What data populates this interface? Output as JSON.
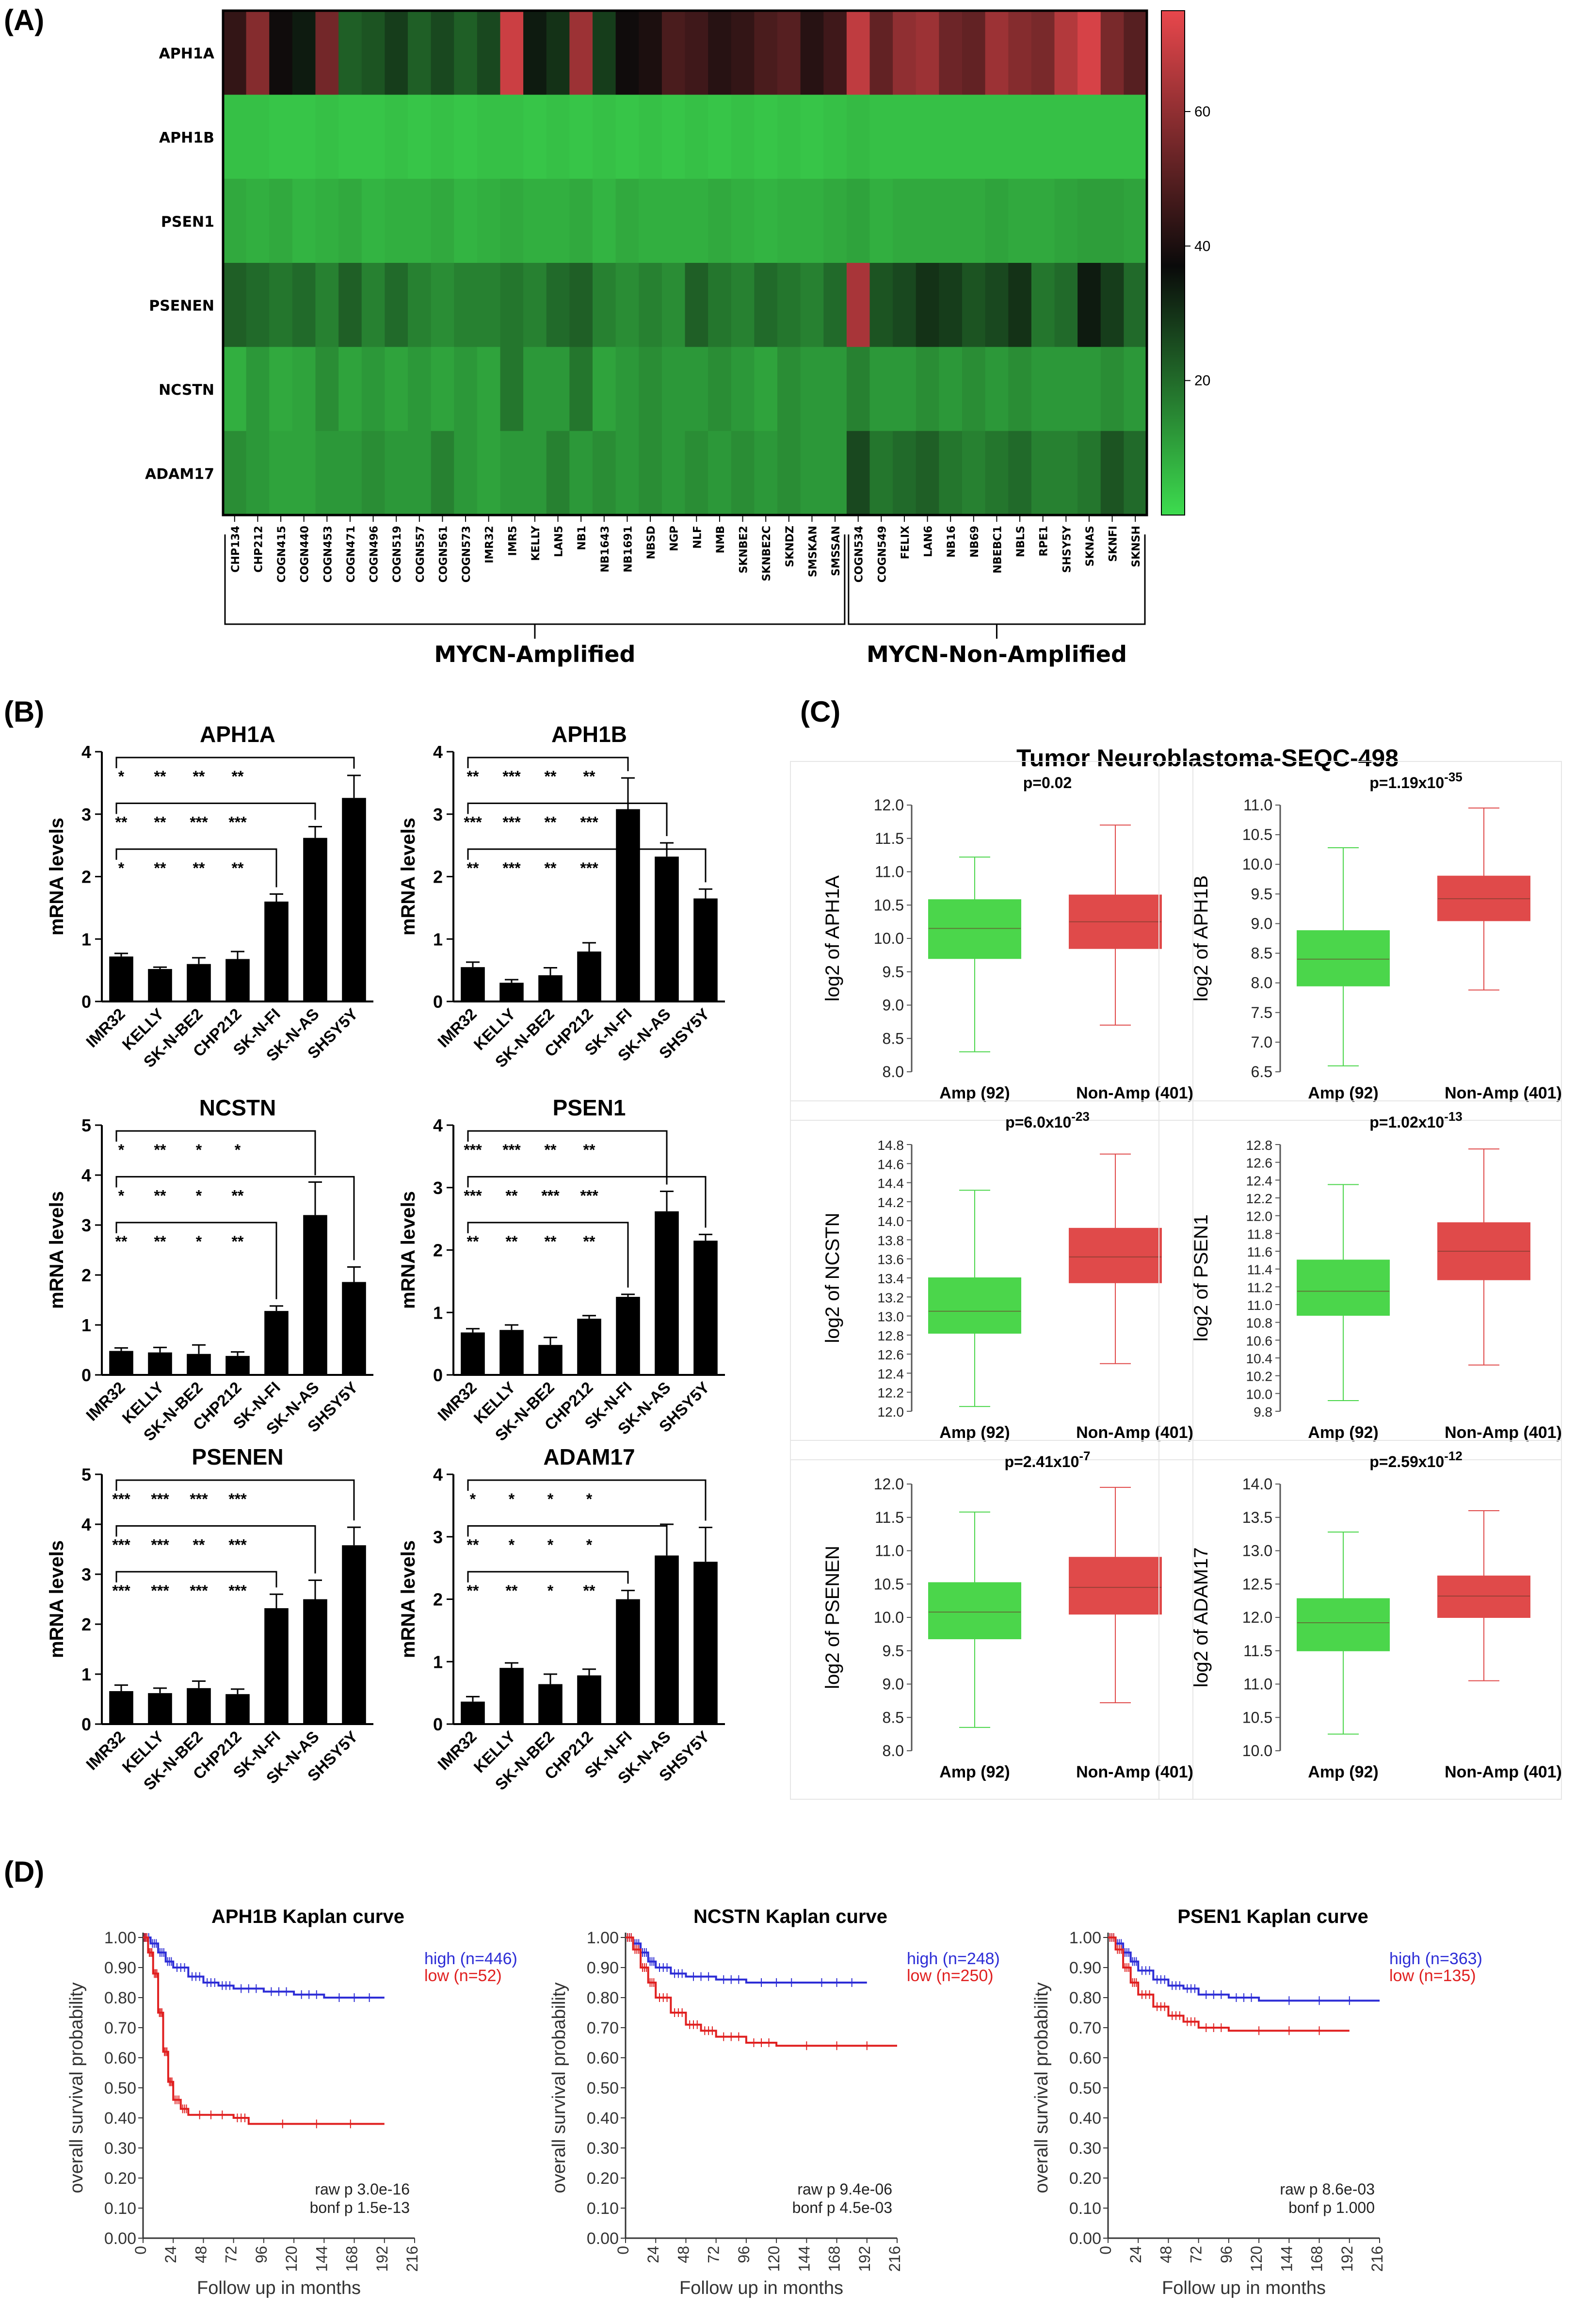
{
  "colors": {
    "green": "#3ddc4f",
    "black": "#0a0a0a",
    "red": "#e8474c",
    "bar": "#000000",
    "box_green": "#4bd64b",
    "box_red": "#e04a4a",
    "km_high": "#2d2dd6",
    "km_low": "#e02020"
  },
  "panel_labels": {
    "a": "(A)",
    "b": "(B)",
    "c": "(C)",
    "d": "(D)"
  },
  "panelA": {
    "genes": [
      "APH1A",
      "APH1B",
      "PSEN1",
      "PSENEN",
      "NCSTN",
      "ADAM17"
    ],
    "cell_lines": [
      "CHP134",
      "CHP212",
      "COGN415",
      "COGN440",
      "COGN453",
      "COGN471",
      "COGN496",
      "COGN519",
      "COGN557",
      "COGN561",
      "COGN573",
      "IMR32",
      "IMR5",
      "KELLY",
      "LAN5",
      "NB1",
      "NB1643",
      "NB1691",
      "NBSD",
      "NGP",
      "NLF",
      "NMB",
      "SKNBE2",
      "SKNBE2C",
      "SKNDZ",
      "SMSKAN",
      "SMSSAN",
      "COGN534",
      "COGN549",
      "FELIX",
      "LAN6",
      "NB16",
      "NB69",
      "NBEBC1",
      "NBLS",
      "RPE1",
      "SHSY5Y",
      "SKNAS",
      "SKNFI",
      "SKNSH"
    ],
    "groups": [
      {
        "label": "MYCN-Amplified",
        "count": 27
      },
      {
        "label": "MYCN-Non-Amplified",
        "count": 13
      }
    ],
    "colorbar": {
      "min": 0,
      "mid": 37,
      "max": 75,
      "ticks": [
        20,
        40,
        60
      ]
    },
    "values": [
      [
        44,
        58,
        38,
        34,
        55,
        22,
        24,
        28,
        22,
        26,
        22,
        26,
        70,
        34,
        30,
        62,
        28,
        38,
        40,
        48,
        46,
        42,
        44,
        48,
        50,
        42,
        46,
        68,
        52,
        60,
        62,
        54,
        52,
        62,
        58,
        56,
        66,
        72,
        56,
        50
      ],
      [
        5,
        5,
        4,
        4,
        5,
        4,
        4,
        5,
        4,
        5,
        4,
        5,
        5,
        4,
        5,
        4,
        5,
        4,
        5,
        4,
        5,
        4,
        5,
        4,
        5,
        4,
        5,
        6,
        5,
        5,
        5,
        5,
        5,
        5,
        5,
        5,
        5,
        5,
        5,
        5
      ],
      [
        9,
        8,
        9,
        7,
        8,
        9,
        7,
        8,
        8,
        9,
        7,
        8,
        9,
        8,
        8,
        9,
        7,
        9,
        8,
        8,
        8,
        9,
        8,
        7,
        8,
        8,
        9,
        10,
        8,
        9,
        9,
        9,
        9,
        10,
        9,
        9,
        10,
        11,
        11,
        10
      ],
      [
        22,
        20,
        18,
        20,
        16,
        22,
        16,
        20,
        16,
        14,
        16,
        16,
        18,
        16,
        20,
        22,
        16,
        14,
        16,
        14,
        22,
        18,
        16,
        20,
        18,
        16,
        20,
        64,
        24,
        26,
        30,
        28,
        24,
        26,
        30,
        18,
        20,
        34,
        28,
        20
      ],
      [
        8,
        12,
        9,
        10,
        14,
        10,
        12,
        10,
        12,
        10,
        12,
        10,
        18,
        12,
        12,
        18,
        10,
        12,
        14,
        12,
        12,
        14,
        12,
        10,
        14,
        12,
        12,
        16,
        12,
        12,
        14,
        12,
        14,
        12,
        14,
        12,
        12,
        12,
        14,
        12
      ],
      [
        14,
        12,
        10,
        10,
        12,
        12,
        14,
        12,
        12,
        16,
        12,
        10,
        12,
        12,
        16,
        12,
        14,
        12,
        14,
        12,
        14,
        12,
        14,
        12,
        14,
        12,
        12,
        26,
        18,
        20,
        22,
        18,
        16,
        18,
        20,
        16,
        16,
        18,
        24,
        20
      ]
    ]
  },
  "panelB": {
    "ylabel": "mRNA levels",
    "categories": [
      "IMR32",
      "KELLY",
      "SK-N-BE2",
      "CHP212",
      "SK-N-FI",
      "SK-N-AS",
      "SHSY5Y"
    ],
    "charts": [
      {
        "title": "APH1A",
        "ymax": 4,
        "values": [
          0.72,
          0.52,
          0.6,
          0.68,
          1.6,
          2.62,
          3.26
        ],
        "errors": [
          0.05,
          0.03,
          0.1,
          0.12,
          0.12,
          0.18,
          0.36
        ],
        "brackets": [
          {
            "to": 6,
            "stars": [
              "*",
              "**",
              "**",
              "**"
            ]
          },
          {
            "to": 5,
            "stars": [
              "**",
              "**",
              "***",
              "***"
            ]
          },
          {
            "to": 4,
            "stars": [
              "*",
              "**",
              "**",
              "**"
            ]
          }
        ]
      },
      {
        "title": "APH1B",
        "ymax": 4,
        "values": [
          0.55,
          0.3,
          0.42,
          0.8,
          3.08,
          2.32,
          1.65
        ],
        "errors": [
          0.08,
          0.05,
          0.12,
          0.14,
          0.5,
          0.22,
          0.15
        ],
        "brackets": [
          {
            "to": 4,
            "stars": [
              "**",
              "***",
              "**",
              "**"
            ]
          },
          {
            "to": 5,
            "stars": [
              "***",
              "***",
              "**",
              "***"
            ]
          },
          {
            "to": 6,
            "stars": [
              "**",
              "***",
              "**",
              "***"
            ]
          }
        ]
      },
      {
        "title": "NCSTN",
        "ymax": 5,
        "values": [
          0.48,
          0.45,
          0.42,
          0.38,
          1.28,
          3.2,
          1.86
        ],
        "errors": [
          0.06,
          0.1,
          0.18,
          0.08,
          0.1,
          0.66,
          0.3
        ],
        "brackets": [
          {
            "to": 5,
            "stars": [
              "*",
              "**",
              "*",
              "*"
            ]
          },
          {
            "to": 6,
            "stars": [
              "*",
              "**",
              "*",
              "**"
            ]
          },
          {
            "to": 4,
            "stars": [
              "**",
              "**",
              "*",
              "**"
            ]
          }
        ]
      },
      {
        "title": "PSEN1",
        "ymax": 4,
        "values": [
          0.68,
          0.72,
          0.48,
          0.9,
          1.25,
          2.62,
          2.15
        ],
        "errors": [
          0.06,
          0.08,
          0.12,
          0.05,
          0.04,
          0.32,
          0.1
        ],
        "brackets": [
          {
            "to": 5,
            "stars": [
              "***",
              "***",
              "**",
              "**"
            ]
          },
          {
            "to": 6,
            "stars": [
              "***",
              "**",
              "***",
              "***"
            ]
          },
          {
            "to": 4,
            "stars": [
              "**",
              "**",
              "**",
              "**"
            ]
          }
        ]
      },
      {
        "title": "PSENEN",
        "ymax": 5,
        "values": [
          0.66,
          0.62,
          0.72,
          0.6,
          2.32,
          2.5,
          3.58
        ],
        "errors": [
          0.12,
          0.1,
          0.14,
          0.1,
          0.28,
          0.38,
          0.36
        ],
        "brackets": [
          {
            "to": 6,
            "stars": [
              "***",
              "***",
              "***",
              "***"
            ]
          },
          {
            "to": 5,
            "stars": [
              "***",
              "***",
              "**",
              "***"
            ]
          },
          {
            "to": 4,
            "stars": [
              "***",
              "***",
              "***",
              "***"
            ]
          }
        ]
      },
      {
        "title": "ADAM17",
        "ymax": 4,
        "values": [
          0.36,
          0.9,
          0.64,
          0.78,
          2.0,
          2.7,
          2.6
        ],
        "errors": [
          0.08,
          0.08,
          0.16,
          0.1,
          0.14,
          0.5,
          0.55
        ],
        "brackets": [
          {
            "to": 6,
            "stars": [
              "*",
              "*",
              "*",
              "*"
            ]
          },
          {
            "to": 5,
            "stars": [
              "**",
              "*",
              "*",
              "*"
            ]
          },
          {
            "to": 4,
            "stars": [
              "**",
              "**",
              "*",
              "**"
            ]
          }
        ]
      }
    ]
  },
  "panelC": {
    "title": "Tumor Neuroblastoma-SEQC-498",
    "groups": [
      "Amp (92)",
      "Non-Amp (401)"
    ],
    "plots": [
      {
        "gene": "APH1A",
        "ylabel": "log2 of APH1A",
        "p_base": "p=0.02",
        "p_exp": "",
        "yticks": [
          "8.0",
          "8.5",
          "9.0",
          "9.5",
          "10.0",
          "10.5",
          "11.0",
          "11.5",
          "12.0"
        ],
        "ylim": [
          8.0,
          12.0
        ],
        "amp": {
          "wl": 8.3,
          "q1": 9.7,
          "med": 10.15,
          "q3": 10.58,
          "wh": 11.22
        },
        "non": {
          "wl": 8.7,
          "q1": 9.85,
          "med": 10.25,
          "q3": 10.65,
          "wh": 11.7
        }
      },
      {
        "gene": "APH1B",
        "ylabel": "log2 of APH1B",
        "p_base": "p=1.19x10",
        "p_exp": "-35",
        "yticks": [
          "6.5",
          "7.0",
          "7.5",
          "8.0",
          "8.5",
          "9.0",
          "9.5",
          "10.0",
          "10.5",
          "11.0"
        ],
        "ylim": [
          6.5,
          11.0
        ],
        "amp": {
          "wl": 6.6,
          "q1": 7.95,
          "med": 8.4,
          "q3": 8.88,
          "wh": 10.28
        },
        "non": {
          "wl": 7.88,
          "q1": 9.05,
          "med": 9.42,
          "q3": 9.8,
          "wh": 10.95
        }
      },
      {
        "gene": "NCSTN",
        "ylabel": "log2 of NCSTN",
        "p_base": "p=6.0x10",
        "p_exp": "-23",
        "yticks": [
          "12.0",
          "12.2",
          "12.4",
          "12.6",
          "12.8",
          "13.0",
          "13.2",
          "13.4",
          "13.6",
          "13.8",
          "14.0",
          "14.2",
          "14.4",
          "14.6",
          "14.8"
        ],
        "ylim": [
          12.0,
          14.8
        ],
        "amp": {
          "wl": 12.05,
          "q1": 12.82,
          "med": 13.05,
          "q3": 13.4,
          "wh": 14.32
        },
        "non": {
          "wl": 12.5,
          "q1": 13.35,
          "med": 13.62,
          "q3": 13.92,
          "wh": 14.7
        }
      },
      {
        "gene": "PSEN1",
        "ylabel": "log2 of PSEN1",
        "p_base": "p=1.02x10",
        "p_exp": "-13",
        "yticks": [
          "9.8",
          "10.0",
          "10.2",
          "10.4",
          "10.6",
          "10.8",
          "11.0",
          "11.2",
          "11.4",
          "11.6",
          "11.8",
          "12.0",
          "12.2",
          "12.4",
          "12.6",
          "12.8"
        ],
        "ylim": [
          9.8,
          12.8
        ],
        "amp": {
          "wl": 9.92,
          "q1": 10.88,
          "med": 11.15,
          "q3": 11.5,
          "wh": 12.35
        },
        "non": {
          "wl": 10.32,
          "q1": 11.28,
          "med": 11.6,
          "q3": 11.92,
          "wh": 12.75
        }
      },
      {
        "gene": "PSENEN",
        "ylabel": "log2 of PSENEN",
        "p_base": "p=2.41x10",
        "p_exp": "-7",
        "yticks": [
          "8.0",
          "8.5",
          "9.0",
          "9.5",
          "10.0",
          "10.5",
          "11.0",
          "11.5",
          "12.0"
        ],
        "ylim": [
          8.0,
          12.0
        ],
        "amp": {
          "wl": 8.35,
          "q1": 9.68,
          "med": 10.08,
          "q3": 10.52,
          "wh": 11.58
        },
        "non": {
          "wl": 8.72,
          "q1": 10.05,
          "med": 10.45,
          "q3": 10.9,
          "wh": 11.95
        }
      },
      {
        "gene": "ADAM17",
        "ylabel": "log2 of ADAM17",
        "p_base": "p=2.59x10",
        "p_exp": "-12",
        "yticks": [
          "10.0",
          "10.5",
          "11.0",
          "11.5",
          "12.0",
          "12.5",
          "13.0",
          "13.5",
          "14.0"
        ],
        "ylim": [
          10.0,
          14.0
        ],
        "amp": {
          "wl": 10.25,
          "q1": 11.5,
          "med": 11.92,
          "q3": 12.28,
          "wh": 13.28
        },
        "non": {
          "wl": 11.05,
          "q1": 12.0,
          "med": 12.32,
          "q3": 12.62,
          "wh": 13.6
        }
      }
    ]
  },
  "panelD": {
    "xlabel": "Follow up in months",
    "ylabel": "overall survival probability",
    "xticks": [
      0,
      24,
      48,
      72,
      96,
      120,
      144,
      168,
      192,
      216
    ],
    "yticks": [
      "0.00",
      "0.10",
      "0.20",
      "0.30",
      "0.40",
      "0.50",
      "0.60",
      "0.70",
      "0.80",
      "0.90",
      "1.00"
    ],
    "curves": [
      {
        "title": "APH1B Kaplan curve",
        "high_label": "high (n=446)",
        "low_label": "low (n=52)",
        "raw_p": "raw p 3.0e-16",
        "bonf_p": "bonf p 1.5e-13",
        "high": [
          [
            0,
            1.0
          ],
          [
            6,
            0.98
          ],
          [
            12,
            0.95
          ],
          [
            18,
            0.92
          ],
          [
            24,
            0.9
          ],
          [
            36,
            0.87
          ],
          [
            48,
            0.85
          ],
          [
            60,
            0.84
          ],
          [
            72,
            0.83
          ],
          [
            96,
            0.82
          ],
          [
            120,
            0.81
          ],
          [
            144,
            0.8
          ],
          [
            192,
            0.8
          ]
        ],
        "low": [
          [
            0,
            1.0
          ],
          [
            4,
            0.95
          ],
          [
            8,
            0.88
          ],
          [
            12,
            0.75
          ],
          [
            16,
            0.62
          ],
          [
            20,
            0.52
          ],
          [
            24,
            0.46
          ],
          [
            30,
            0.43
          ],
          [
            36,
            0.41
          ],
          [
            72,
            0.4
          ],
          [
            84,
            0.38
          ],
          [
            192,
            0.38
          ]
        ]
      },
      {
        "title": "NCSTN Kaplan curve",
        "high_label": "high (n=248)",
        "low_label": "low (n=250)",
        "raw_p": "raw p 9.4e-06",
        "bonf_p": "bonf p 4.5e-03",
        "high": [
          [
            0,
            1.0
          ],
          [
            6,
            0.98
          ],
          [
            12,
            0.95
          ],
          [
            18,
            0.92
          ],
          [
            24,
            0.9
          ],
          [
            36,
            0.88
          ],
          [
            48,
            0.87
          ],
          [
            72,
            0.86
          ],
          [
            96,
            0.85
          ],
          [
            144,
            0.85
          ],
          [
            192,
            0.85
          ]
        ],
        "low": [
          [
            0,
            1.0
          ],
          [
            6,
            0.96
          ],
          [
            12,
            0.9
          ],
          [
            18,
            0.85
          ],
          [
            24,
            0.8
          ],
          [
            36,
            0.75
          ],
          [
            48,
            0.71
          ],
          [
            60,
            0.69
          ],
          [
            72,
            0.67
          ],
          [
            96,
            0.65
          ],
          [
            120,
            0.64
          ],
          [
            216,
            0.64
          ]
        ]
      },
      {
        "title": "PSEN1 Kaplan curve",
        "high_label": "high (n=363)",
        "low_label": "low (n=135)",
        "raw_p": "raw p 8.6e-03",
        "bonf_p": "bonf p 1.000",
        "high": [
          [
            0,
            1.0
          ],
          [
            6,
            0.98
          ],
          [
            12,
            0.95
          ],
          [
            18,
            0.92
          ],
          [
            24,
            0.89
          ],
          [
            36,
            0.86
          ],
          [
            48,
            0.84
          ],
          [
            60,
            0.83
          ],
          [
            72,
            0.81
          ],
          [
            96,
            0.8
          ],
          [
            120,
            0.79
          ],
          [
            216,
            0.79
          ]
        ],
        "low": [
          [
            0,
            1.0
          ],
          [
            6,
            0.96
          ],
          [
            12,
            0.9
          ],
          [
            18,
            0.85
          ],
          [
            24,
            0.81
          ],
          [
            36,
            0.77
          ],
          [
            48,
            0.74
          ],
          [
            60,
            0.72
          ],
          [
            72,
            0.7
          ],
          [
            96,
            0.69
          ],
          [
            192,
            0.69
          ]
        ]
      }
    ]
  }
}
